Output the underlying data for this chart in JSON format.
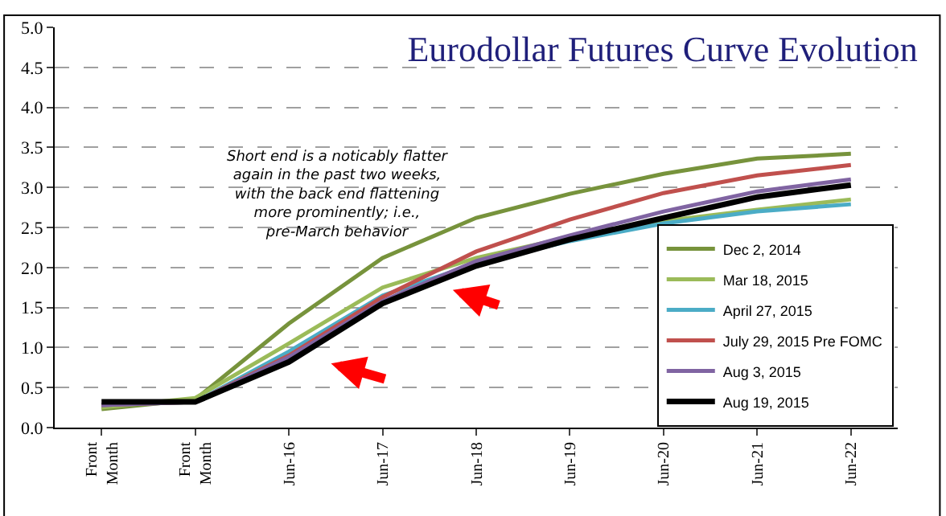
{
  "chart_data": {
    "type": "line",
    "title": "Eurodollar Futures Curve Evolution",
    "categories": [
      "Front Month",
      "Front Month",
      "Jun-16",
      "Jun-17",
      "Jun-18",
      "Jun-19",
      "Jun-20",
      "Jun-21",
      "Jun-22"
    ],
    "series": [
      {
        "name": "Dec 2, 2014",
        "color": "#77933c",
        "values": [
          0.23,
          0.35,
          1.3,
          2.12,
          2.62,
          2.92,
          3.17,
          3.36,
          3.42
        ]
      },
      {
        "name": "Mar 18, 2015",
        "color": "#9bbb59",
        "values": [
          0.25,
          0.37,
          1.05,
          1.75,
          2.12,
          2.38,
          2.58,
          2.72,
          2.85
        ]
      },
      {
        "name": "April 27, 2015",
        "color": "#4bacc6",
        "values": [
          0.28,
          0.32,
          0.95,
          1.65,
          2.05,
          2.33,
          2.55,
          2.7,
          2.79
        ]
      },
      {
        "name": "July 29, 2015 Pre FOMC",
        "color": "#c0504d",
        "values": [
          0.28,
          0.32,
          0.9,
          1.63,
          2.2,
          2.6,
          2.93,
          3.15,
          3.28
        ]
      },
      {
        "name": "Aug 3, 2015",
        "color": "#8064a2",
        "values": [
          0.28,
          0.32,
          0.88,
          1.58,
          2.08,
          2.4,
          2.7,
          2.95,
          3.1
        ]
      },
      {
        "name": "Aug 19, 2015",
        "color": "#000000",
        "values": [
          0.32,
          0.32,
          0.82,
          1.55,
          2.02,
          2.35,
          2.62,
          2.88,
          3.03
        ]
      }
    ],
    "ylim": [
      0,
      5
    ],
    "yticks": [
      {
        "value": 0,
        "label": "0.0"
      },
      {
        "value": 0.5,
        "label": "0.5"
      },
      {
        "value": 1,
        "label": "1.0"
      },
      {
        "value": 1.5,
        "label": "1.5"
      },
      {
        "value": 2,
        "label": "2.0"
      },
      {
        "value": 2.5,
        "label": "2.5"
      },
      {
        "value": 3,
        "label": "3.0"
      },
      {
        "value": 3.5,
        "label": "3.5"
      },
      {
        "value": 4,
        "label": "4.0"
      },
      {
        "value": 4.5,
        "label": "4.5"
      },
      {
        "value": 5,
        "label": "5.0"
      }
    ],
    "grid": "y",
    "legend": "bottom right",
    "marker": "none",
    "line_style": "solid",
    "annotations": [
      "Short end is a noticably flatter again in the past two weeks, with the back end flattening more prominently; i.e., pre-March behavior"
    ]
  }
}
